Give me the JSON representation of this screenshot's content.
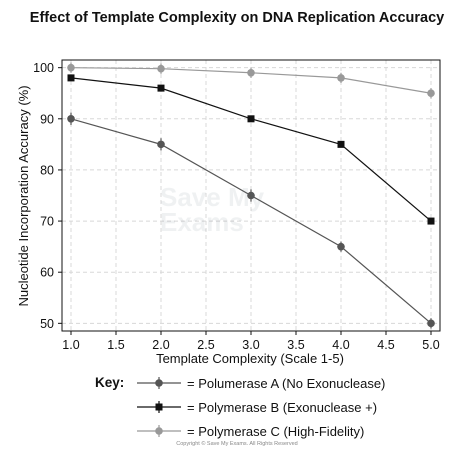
{
  "chart_data": {
    "type": "line",
    "title": "Effect of Template Complexity on DNA Replication Accuracy",
    "xlabel": "Template Complexity (Scale 1-5)",
    "ylabel": "Nucleotide Incorporation Accuracy (%)",
    "xlim": [
      0.9,
      5.1
    ],
    "ylim": [
      48.5,
      101.5
    ],
    "xticks": [
      "1.0",
      "1.5",
      "2.0",
      "2.5",
      "3.0",
      "3.5",
      "4.0",
      "4.5",
      "5.0"
    ],
    "yticks": [
      "50",
      "60",
      "70",
      "80",
      "90",
      "100"
    ],
    "grid": true,
    "x": [
      1.0,
      2.0,
      3.0,
      4.0,
      5.0
    ],
    "series": [
      {
        "name": "Polumerase A (No Exonuclease)",
        "values": [
          90,
          85,
          75,
          65,
          50
        ],
        "error": [
          1.2,
          1.2,
          1.2,
          1.0,
          1.0
        ],
        "color": "#555555",
        "marker": "circle"
      },
      {
        "name": "Polymerase B (Exonuclease +)",
        "values": [
          98,
          96,
          90,
          85,
          70
        ],
        "error": [
          0.6,
          0.6,
          0.6,
          0.6,
          0.6
        ],
        "color": "#111111",
        "marker": "square"
      },
      {
        "name": "Polymerase C (High-Fidelity)",
        "values": [
          100,
          99.8,
          99,
          98,
          95
        ],
        "error": [
          1.0,
          1.0,
          1.0,
          1.0,
          1.0
        ],
        "color": "#999999",
        "marker": "circle"
      }
    ],
    "legend": {
      "key_label": "Key:",
      "placement": "bottom"
    }
  },
  "watermark": {
    "line1": "Save My",
    "line2": "Exams"
  },
  "footer": "Copyright © Save My Exams. All Rights Reserved"
}
